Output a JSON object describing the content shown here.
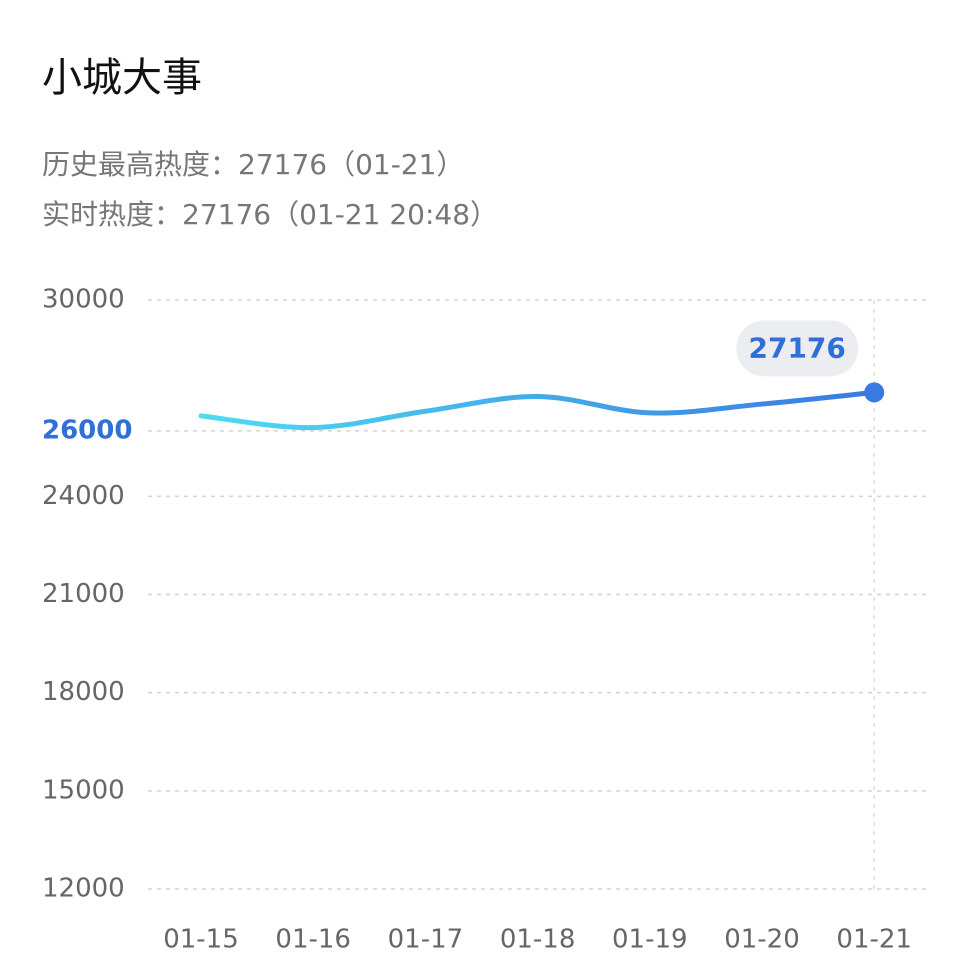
{
  "chart_data": {
    "type": "line",
    "title": "小城大事",
    "annotations": [
      "历史最高热度：27176（01-21）",
      "实时热度：27176（01-21 20:48）"
    ],
    "categories": [
      "01-15",
      "01-16",
      "01-17",
      "01-18",
      "01-19",
      "01-20",
      "01-21"
    ],
    "values": [
      26460,
      26100,
      26600,
      27050,
      26550,
      26820,
      27176
    ],
    "color": [
      "#4ddcf2",
      "#3a78e2"
    ],
    "ylim": [
      12000,
      30000
    ],
    "yticks": [
      30000,
      26000,
      24000,
      21000,
      18000,
      15000,
      12000
    ],
    "highlight_ytick": 26000,
    "highlight_color": "#2f6fd6",
    "grid": true
  }
}
